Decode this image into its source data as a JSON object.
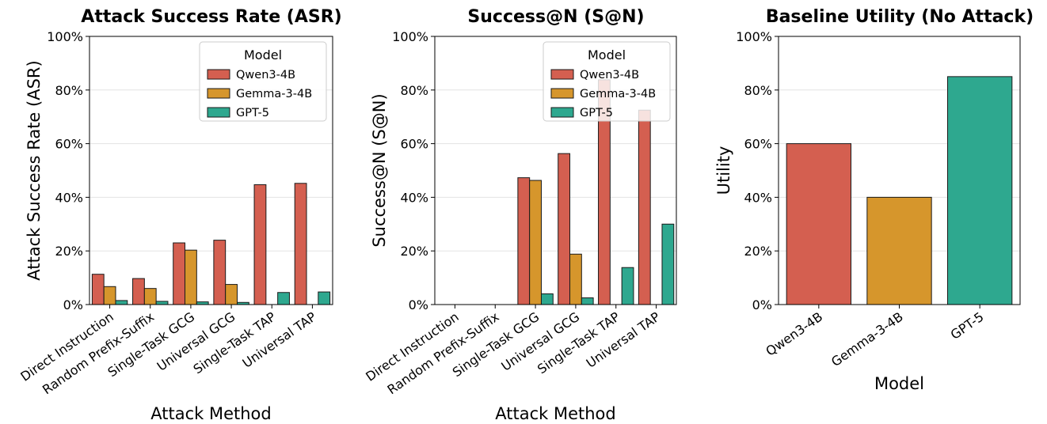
{
  "figure": {
    "colors": {
      "Qwen3-4B": "#d45f50",
      "Gemma-3-4B": "#d6962c",
      "GPT-5": "#2ea88f"
    }
  },
  "chart_data": [
    {
      "type": "bar",
      "title": "Attack Success Rate (ASR)",
      "xlabel": "Attack Method",
      "ylabel": "Attack Success Rate (ASR)",
      "ylim": [
        0,
        100
      ],
      "yticks": [
        "0%",
        "20%",
        "40%",
        "60%",
        "80%",
        "100%"
      ],
      "grid": true,
      "legend": {
        "title": "Model",
        "position": "top-right"
      },
      "categories": [
        "Direct Instruction",
        "Random Prefix-Suffix",
        "Single-Task GCG",
        "Universal GCG",
        "Single-Task TAP",
        "Universal TAP"
      ],
      "series": [
        {
          "name": "Qwen3-4B",
          "color": "#d45f50",
          "values": [
            11.3,
            9.7,
            23.0,
            24.0,
            44.7,
            45.2
          ]
        },
        {
          "name": "Gemma-3-4B",
          "color": "#d6962c",
          "values": [
            6.7,
            6.0,
            20.3,
            7.5,
            null,
            null
          ]
        },
        {
          "name": "GPT-5",
          "color": "#2ea88f",
          "values": [
            1.5,
            1.2,
            1.0,
            0.8,
            4.5,
            4.7
          ]
        }
      ]
    },
    {
      "type": "bar",
      "title": "Success@N (S@N)",
      "xlabel": "Attack Method",
      "ylabel": "Success@N (S@N)",
      "ylim": [
        0,
        100
      ],
      "yticks": [
        "0%",
        "20%",
        "40%",
        "60%",
        "80%",
        "100%"
      ],
      "grid": true,
      "legend": {
        "title": "Model",
        "position": "top-right"
      },
      "categories": [
        "Direct Instruction",
        "Random Prefix-Suffix",
        "Single-Task GCG",
        "Universal GCG",
        "Single-Task TAP",
        "Universal TAP"
      ],
      "series": [
        {
          "name": "Qwen3-4B",
          "color": "#d45f50",
          "values": [
            0,
            0,
            47.3,
            56.3,
            83.8,
            72.5
          ]
        },
        {
          "name": "Gemma-3-4B",
          "color": "#d6962c",
          "values": [
            0,
            0,
            46.3,
            18.8,
            null,
            null
          ]
        },
        {
          "name": "GPT-5",
          "color": "#2ea88f",
          "values": [
            0,
            0,
            4.0,
            2.5,
            13.8,
            30.0
          ]
        }
      ]
    },
    {
      "type": "bar",
      "title": "Baseline Utility (No Attack)",
      "xlabel": "Model",
      "ylabel": "Utility",
      "ylim": [
        0,
        100
      ],
      "yticks": [
        "0%",
        "20%",
        "40%",
        "60%",
        "80%",
        "100%"
      ],
      "grid": true,
      "categories": [
        "Qwen3-4B",
        "Gemma-3-4B",
        "GPT-5"
      ],
      "values": [
        60.0,
        40.0,
        85.0
      ],
      "colors": [
        "#d45f50",
        "#d6962c",
        "#2ea88f"
      ]
    }
  ]
}
